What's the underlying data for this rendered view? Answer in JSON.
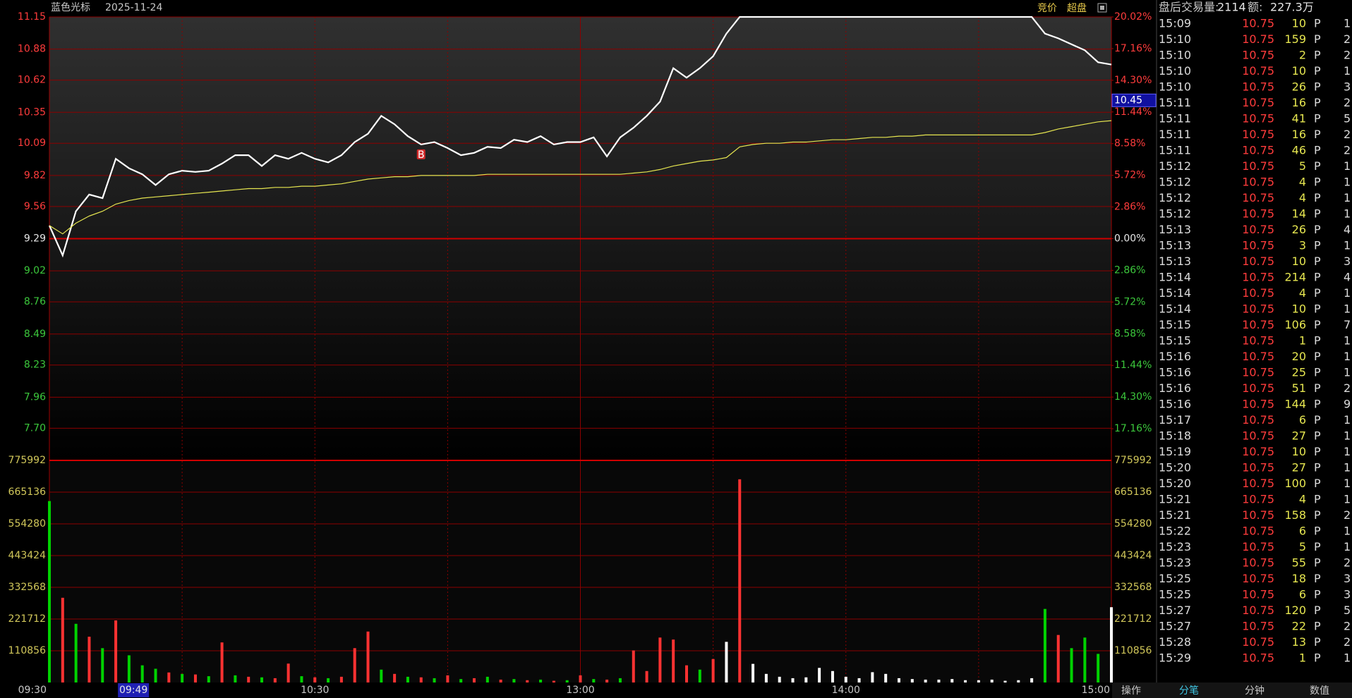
{
  "header": {
    "name": "蓝色光标",
    "date": "2025-11-24",
    "buttons": [
      "竞价",
      "超盘"
    ]
  },
  "chart_data": [
    {
      "type": "line",
      "x": [
        "09:30",
        "09:33",
        "09:36",
        "09:39",
        "09:42",
        "09:45",
        "09:48",
        "09:51",
        "09:54",
        "09:57",
        "10:00",
        "10:03",
        "10:06",
        "10:09",
        "10:12",
        "10:15",
        "10:18",
        "10:21",
        "10:24",
        "10:27",
        "10:30",
        "10:33",
        "10:36",
        "10:39",
        "10:42",
        "10:45",
        "10:48",
        "10:51",
        "10:54",
        "10:57",
        "11:00",
        "11:03",
        "11:06",
        "11:09",
        "11:12",
        "11:15",
        "11:18",
        "11:21",
        "11:24",
        "11:27",
        "13:00",
        "13:03",
        "13:06",
        "13:09",
        "13:12",
        "13:15",
        "13:18",
        "13:21",
        "13:24",
        "13:27",
        "13:30",
        "13:33",
        "13:36",
        "13:39",
        "13:42",
        "13:45",
        "13:48",
        "13:51",
        "13:54",
        "13:57",
        "14:00",
        "14:03",
        "14:06",
        "14:09",
        "14:12",
        "14:15",
        "14:18",
        "14:21",
        "14:24",
        "14:27",
        "14:30",
        "14:33",
        "14:36",
        "14:39",
        "14:42",
        "14:45",
        "14:48",
        "14:51",
        "14:54",
        "14:57",
        "15:00"
      ],
      "series": [
        {
          "color": "#ffffff",
          "values": [
            9.4,
            9.15,
            9.52,
            9.66,
            9.63,
            9.96,
            9.88,
            9.83,
            9.74,
            9.83,
            9.86,
            9.85,
            9.86,
            9.92,
            9.99,
            9.99,
            9.9,
            9.99,
            9.96,
            10.01,
            9.96,
            9.93,
            9.99,
            10.1,
            10.17,
            10.32,
            10.25,
            10.15,
            10.08,
            10.1,
            10.05,
            9.99,
            10.01,
            10.06,
            10.05,
            10.12,
            10.1,
            10.15,
            10.08,
            10.1,
            10.1,
            10.14,
            9.98,
            10.14,
            10.22,
            10.32,
            10.44,
            10.72,
            10.64,
            10.72,
            10.82,
            11.01,
            11.15,
            11.15,
            11.15,
            11.15,
            11.15,
            11.15,
            11.15,
            11.15,
            11.15,
            11.15,
            11.15,
            11.15,
            11.15,
            11.15,
            11.15,
            11.15,
            11.15,
            11.15,
            11.15,
            11.15,
            11.15,
            11.15,
            11.15,
            11.01,
            10.97,
            10.92,
            10.87,
            10.77,
            10.75
          ]
        },
        {
          "color": "#e6e650",
          "values": [
            9.4,
            9.33,
            9.42,
            9.48,
            9.52,
            9.58,
            9.61,
            9.63,
            9.64,
            9.65,
            9.66,
            9.67,
            9.68,
            9.69,
            9.7,
            9.71,
            9.71,
            9.72,
            9.72,
            9.73,
            9.73,
            9.74,
            9.75,
            9.77,
            9.79,
            9.8,
            9.81,
            9.81,
            9.82,
            9.82,
            9.82,
            9.82,
            9.82,
            9.83,
            9.83,
            9.83,
            9.83,
            9.83,
            9.83,
            9.83,
            9.83,
            9.83,
            9.83,
            9.83,
            9.84,
            9.85,
            9.87,
            9.9,
            9.92,
            9.94,
            9.95,
            9.97,
            10.06,
            10.08,
            10.09,
            10.09,
            10.1,
            10.1,
            10.11,
            10.12,
            10.12,
            10.13,
            10.14,
            10.14,
            10.15,
            10.15,
            10.16,
            10.16,
            10.16,
            10.16,
            10.16,
            10.16,
            10.16,
            10.16,
            10.16,
            10.18,
            10.21,
            10.23,
            10.25,
            10.27,
            10.28
          ]
        }
      ],
      "ylim": [
        7.43,
        11.15
      ],
      "yticks": [
        11.15,
        10.88,
        10.62,
        10.35,
        10.09,
        9.82,
        9.56,
        9.29,
        9.02,
        8.76,
        8.49,
        8.23,
        7.96,
        {
          "value": 7.7,
          "label": "7.70"
        }
      ],
      "y2lim": [
        -20.02,
        20.02
      ],
      "y2ticks": [
        {
          "value": 20.02,
          "label": "20.02%"
        },
        {
          "value": 17.16,
          "label": "17.16%"
        },
        {
          "value": 14.3,
          "label": "14.30%"
        },
        {
          "value": 11.44,
          "label": "11.44%"
        },
        {
          "value": 8.58,
          "label": "8.58%"
        },
        {
          "value": 5.72,
          "label": "5.72%"
        },
        {
          "value": 2.86,
          "label": "2.86%"
        },
        {
          "value": 0,
          "label": "0.00%"
        },
        {
          "value": -2.86,
          "label": "2.86%"
        },
        {
          "value": -5.72,
          "label": "5.72%"
        },
        {
          "value": -8.58,
          "label": "8.58%"
        },
        {
          "value": -11.44,
          "label": "11.44%"
        },
        {
          "value": -14.3,
          "label": "14.30%"
        },
        {
          "value": -17.16,
          "label": "17.16%"
        }
      ],
      "xticks": [
        "09:30",
        "10:30",
        "13:00",
        "14:00",
        "15:00"
      ],
      "annotations": [
        {
          "text": "B",
          "x": "10:54"
        }
      ],
      "cursor": {
        "time": "09:49",
        "price": 10.45
      }
    },
    {
      "type": "bar",
      "x": [
        "09:30",
        "09:33",
        "09:36",
        "09:39",
        "09:42",
        "09:45",
        "09:48",
        "09:51",
        "09:54",
        "09:57",
        "10:00",
        "10:03",
        "10:06",
        "10:09",
        "10:12",
        "10:15",
        "10:18",
        "10:21",
        "10:24",
        "10:27",
        "10:30",
        "10:33",
        "10:36",
        "10:39",
        "10:42",
        "10:45",
        "10:48",
        "10:51",
        "10:54",
        "10:57",
        "11:00",
        "11:03",
        "11:06",
        "11:09",
        "11:12",
        "11:15",
        "11:18",
        "11:21",
        "11:24",
        "11:27",
        "13:00",
        "13:03",
        "13:06",
        "13:09",
        "13:12",
        "13:15",
        "13:18",
        "13:21",
        "13:24",
        "13:27",
        "13:30",
        "13:33",
        "13:36",
        "13:39",
        "13:42",
        "13:45",
        "13:48",
        "13:51",
        "13:54",
        "13:57",
        "14:00",
        "14:03",
        "14:06",
        "14:09",
        "14:12",
        "14:15",
        "14:18",
        "14:21",
        "14:24",
        "14:27",
        "14:30",
        "14:33",
        "14:36",
        "14:39",
        "14:42",
        "14:45",
        "14:48",
        "14:51",
        "14:54",
        "14:57",
        "15:00"
      ],
      "values": [
        634000,
        296000,
        205000,
        160000,
        120000,
        217000,
        95000,
        60000,
        48000,
        35000,
        30000,
        28000,
        22000,
        140000,
        25000,
        20000,
        18000,
        15000,
        66000,
        22000,
        18000,
        15000,
        20000,
        120000,
        178000,
        45000,
        30000,
        20000,
        18000,
        15000,
        25000,
        12000,
        15000,
        20000,
        10000,
        12000,
        8000,
        10000,
        6000,
        8000,
        25000,
        12000,
        10000,
        15000,
        112000,
        40000,
        157000,
        150000,
        60000,
        45000,
        82000,
        142000,
        710000,
        65000,
        30000,
        20000,
        15000,
        18000,
        51000,
        40000,
        20000,
        15000,
        36000,
        30000,
        15000,
        12000,
        10000,
        10000,
        12000,
        8000,
        8000,
        10000,
        6000,
        8000,
        15000,
        257000,
        166000,
        120000,
        157000,
        100000,
        263000
      ],
      "colors": [
        "#00d200",
        "#ff3232",
        "#00d200",
        "#ff3232",
        "#00d200",
        "#ff3232",
        "#00d200",
        "#00d200",
        "#00d200",
        "#ff3232",
        "#00d200",
        "#ff3232",
        "#00d200",
        "#ff3232",
        "#00d200",
        "#ff3232",
        "#00d200",
        "#ff3232",
        "#ff3232",
        "#00d200",
        "#ff3232",
        "#00d200",
        "#ff3232",
        "#ff3232",
        "#ff3232",
        "#00d200",
        "#ff3232",
        "#00d200",
        "#ff3232",
        "#00d200",
        "#ff3232",
        "#00d200",
        "#ff3232",
        "#00d200",
        "#ff3232",
        "#00d200",
        "#ff3232",
        "#00d200",
        "#ff3232",
        "#00d200",
        "#ff3232",
        "#00d200",
        "#ff3232",
        "#00d200",
        "#ff3232",
        "#ff3232",
        "#ff3232",
        "#ff3232",
        "#ff3232",
        "#00d200",
        "#ff3232",
        "#ffffff",
        "#ff3232",
        "#ffffff",
        "#ffffff",
        "#ffffff",
        "#ffffff",
        "#ffffff",
        "#ffffff",
        "#ffffff",
        "#ffffff",
        "#ffffff",
        "#ffffff",
        "#ffffff",
        "#ffffff",
        "#ffffff",
        "#ffffff",
        "#ffffff",
        "#ffffff",
        "#ffffff",
        "#ffffff",
        "#ffffff",
        "#ffffff",
        "#ffffff",
        "#ffffff",
        "#00d200",
        "#ff3232",
        "#00d200",
        "#00d200",
        "#00d200",
        "#ffffff"
      ],
      "ylim": [
        0,
        775992
      ],
      "yticks": [
        110856,
        221712,
        332568,
        443424,
        554280,
        665136,
        775992
      ]
    }
  ],
  "trades": {
    "header": {
      "label": "盘后交易量:",
      "volume": "2114",
      "amount_label": "额:",
      "amount": "227.3万"
    },
    "rows": [
      [
        "15:09",
        "10.75",
        "10",
        "P",
        "1"
      ],
      [
        "15:10",
        "10.75",
        "159",
        "P",
        "2"
      ],
      [
        "15:10",
        "10.75",
        "2",
        "P",
        "2"
      ],
      [
        "15:10",
        "10.75",
        "10",
        "P",
        "1"
      ],
      [
        "15:10",
        "10.75",
        "26",
        "P",
        "3"
      ],
      [
        "15:11",
        "10.75",
        "16",
        "P",
        "2"
      ],
      [
        "15:11",
        "10.75",
        "41",
        "P",
        "5"
      ],
      [
        "15:11",
        "10.75",
        "16",
        "P",
        "2"
      ],
      [
        "15:11",
        "10.75",
        "46",
        "P",
        "2"
      ],
      [
        "15:12",
        "10.75",
        "5",
        "P",
        "1"
      ],
      [
        "15:12",
        "10.75",
        "4",
        "P",
        "1"
      ],
      [
        "15:12",
        "10.75",
        "4",
        "P",
        "1"
      ],
      [
        "15:12",
        "10.75",
        "14",
        "P",
        "1"
      ],
      [
        "15:13",
        "10.75",
        "26",
        "P",
        "4"
      ],
      [
        "15:13",
        "10.75",
        "3",
        "P",
        "1"
      ],
      [
        "15:13",
        "10.75",
        "10",
        "P",
        "3"
      ],
      [
        "15:14",
        "10.75",
        "214",
        "P",
        "4"
      ],
      [
        "15:14",
        "10.75",
        "4",
        "P",
        "1"
      ],
      [
        "15:14",
        "10.75",
        "10",
        "P",
        "1"
      ],
      [
        "15:15",
        "10.75",
        "106",
        "P",
        "7"
      ],
      [
        "15:15",
        "10.75",
        "1",
        "P",
        "1"
      ],
      [
        "15:16",
        "10.75",
        "20",
        "P",
        "1"
      ],
      [
        "15:16",
        "10.75",
        "25",
        "P",
        "1"
      ],
      [
        "15:16",
        "10.75",
        "51",
        "P",
        "2"
      ],
      [
        "15:16",
        "10.75",
        "144",
        "P",
        "9"
      ],
      [
        "15:17",
        "10.75",
        "6",
        "P",
        "1"
      ],
      [
        "15:18",
        "10.75",
        "27",
        "P",
        "1"
      ],
      [
        "15:19",
        "10.75",
        "10",
        "P",
        "1"
      ],
      [
        "15:20",
        "10.75",
        "27",
        "P",
        "1"
      ],
      [
        "15:20",
        "10.75",
        "100",
        "P",
        "1"
      ],
      [
        "15:21",
        "10.75",
        "4",
        "P",
        "1"
      ],
      [
        "15:21",
        "10.75",
        "158",
        "P",
        "2"
      ],
      [
        "15:22",
        "10.75",
        "6",
        "P",
        "1"
      ],
      [
        "15:23",
        "10.75",
        "5",
        "P",
        "1"
      ],
      [
        "15:23",
        "10.75",
        "55",
        "P",
        "2"
      ],
      [
        "15:25",
        "10.75",
        "18",
        "P",
        "3"
      ],
      [
        "15:25",
        "10.75",
        "6",
        "P",
        "3"
      ],
      [
        "15:27",
        "10.75",
        "120",
        "P",
        "5"
      ],
      [
        "15:27",
        "10.75",
        "22",
        "P",
        "2"
      ],
      [
        "15:28",
        "10.75",
        "13",
        "P",
        "2"
      ],
      [
        "15:29",
        "10.75",
        "1",
        "P",
        "1"
      ]
    ]
  },
  "tabs": [
    "操作",
    "分笔",
    "分钟",
    "数值"
  ]
}
